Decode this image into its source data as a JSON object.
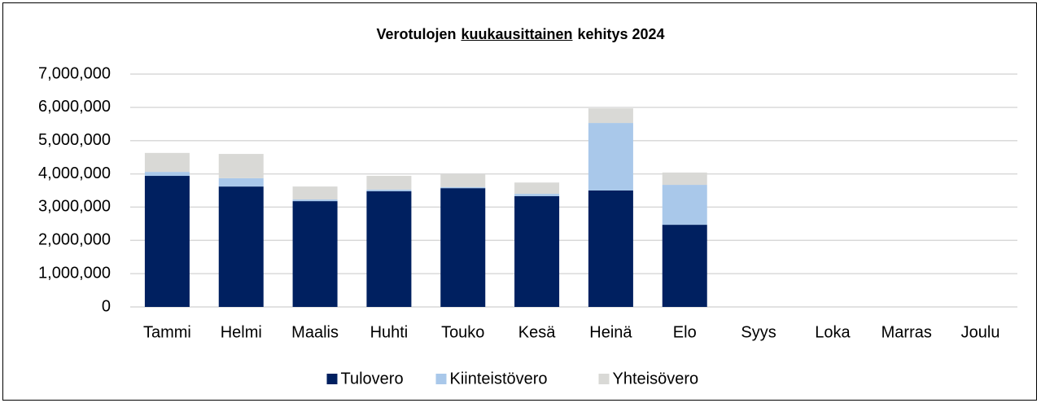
{
  "chart_data": {
    "type": "stacked-bar",
    "title": [
      "Verotulojen",
      "kuukausittainen",
      "kehitys 2024"
    ],
    "title_underline": 1,
    "categories": [
      "Tammi",
      "Helmi",
      "Maalis",
      "Huhti",
      "Touko",
      "Kesä",
      "Heinä",
      "Elo",
      "Syys",
      "Loka",
      "Marras",
      "Joulu"
    ],
    "series": [
      {
        "name": "Tulovero",
        "color": "#002060",
        "values": [
          3940000,
          3620000,
          3180000,
          3480000,
          3570000,
          3330000,
          3500000,
          2470000,
          null,
          null,
          null,
          null
        ]
      },
      {
        "name": "Kiinteistövero",
        "color": "#a9c8ea",
        "values": [
          120000,
          250000,
          50000,
          50000,
          30000,
          70000,
          2030000,
          1200000,
          null,
          null,
          null,
          null
        ]
      },
      {
        "name": "Yhteisövero",
        "color": "#d9d9d6",
        "values": [
          570000,
          730000,
          390000,
          410000,
          390000,
          340000,
          440000,
          370000,
          null,
          null,
          null,
          null
        ]
      }
    ],
    "ylim": [
      0,
      7000000
    ],
    "yticks": [
      0,
      {
        "value": 1000000,
        "label": "1,000,000"
      },
      {
        "value": 2000000,
        "label": "2,000,000"
      },
      {
        "value": 3000000,
        "label": "3,000,000"
      },
      {
        "value": 4000000,
        "label": "4,000,000"
      },
      {
        "value": 5000000,
        "label": "5,000,000"
      },
      {
        "value": 6000000,
        "label": "6,000,000"
      },
      {
        "value": 7000000,
        "label": "7,000,000"
      }
    ],
    "grid": true,
    "legend": "bottom"
  }
}
